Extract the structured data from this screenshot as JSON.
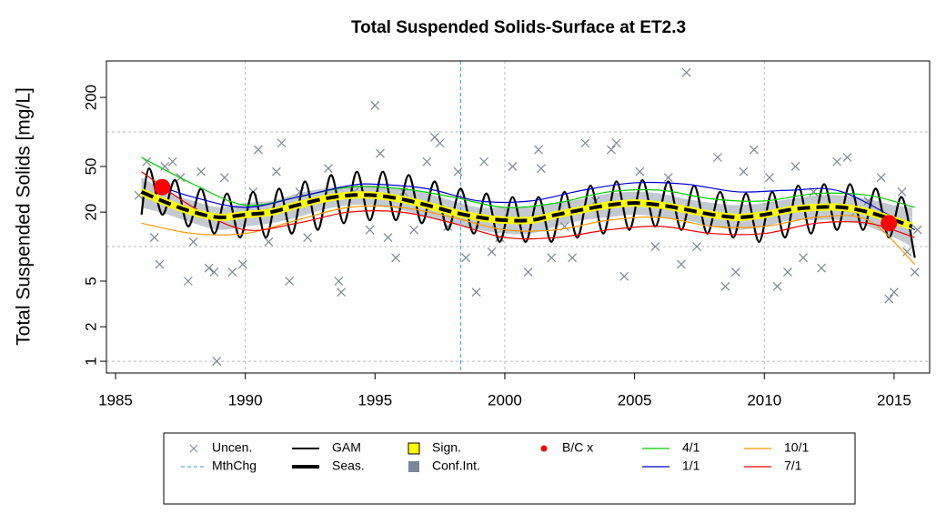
{
  "chart_data": {
    "type": "line",
    "title": "Total Suspended Solids-Surface at ET2.3",
    "y_label": "Total Suspended Solids [mg/L]",
    "log_y": true,
    "xlim": [
      1984.65,
      2016.37
    ],
    "ylim": [
      0.79,
      416
    ],
    "xticks": [
      1985,
      1990,
      1995,
      2000,
      2005,
      2010,
      2015
    ],
    "yticks": [
      1,
      2,
      5,
      20,
      50,
      200
    ],
    "xgrid": [
      1990,
      2000,
      2010
    ],
    "ygrid": [
      1,
      10,
      100
    ],
    "series": [
      {
        "name": "Uncen.",
        "kind": "scatter",
        "color": "#7a8796",
        "x": [
          1985.9,
          1986.2,
          1986.5,
          1986.7,
          1986.9,
          1987.2,
          1987.5,
          1987.8,
          1988.0,
          1988.3,
          1988.6,
          1988.8,
          1988.9,
          1989.2,
          1989.5,
          1989.9,
          1990.3,
          1990.5,
          1990.9,
          1991.2,
          1991.4,
          1991.7,
          1992.1,
          1992.4,
          1993.2,
          1993.6,
          1993.7,
          1994.2,
          1994.8,
          1995.0,
          1995.2,
          1995.5,
          1995.8,
          1996.1,
          1996.5,
          1997.0,
          1997.3,
          1997.5,
          1997.8,
          1998.2,
          1998.5,
          1998.9,
          1999.2,
          1999.5,
          1999.8,
          2000.3,
          2000.9,
          2001.3,
          2001.4,
          2001.8,
          2002.3,
          2002.6,
          2003.1,
          2003.5,
          2004.1,
          2004.3,
          2004.6,
          2005.2,
          2005.8,
          2006.3,
          2006.8,
          2007.0,
          2007.4,
          2008.2,
          2008.5,
          2008.9,
          2009.2,
          2009.6,
          2010.2,
          2010.5,
          2010.9,
          2011.2,
          2011.5,
          2011.9,
          2012.2,
          2012.8,
          2013.2,
          2013.5,
          2014.0,
          2014.5,
          2014.8,
          2015.0,
          2015.3,
          2015.5,
          2015.8,
          2015.9
        ],
        "values": [
          28,
          55,
          12,
          7,
          50,
          55,
          40,
          5,
          11,
          45,
          6.5,
          6,
          1,
          40,
          6,
          7,
          30,
          70,
          11,
          45,
          80,
          5,
          30,
          12,
          48,
          5,
          4,
          30,
          14,
          170,
          65,
          12,
          8,
          30,
          14,
          55,
          90,
          80,
          15,
          45,
          8,
          4,
          55,
          9,
          12,
          50,
          6,
          70,
          48,
          8,
          15,
          8,
          80,
          25,
          70,
          80,
          5.5,
          45,
          10,
          40,
          7,
          330,
          10,
          60,
          4.5,
          6,
          45,
          70,
          40,
          4.5,
          6,
          50,
          8,
          30,
          6.5,
          55,
          60,
          20,
          25,
          40,
          3.5,
          4,
          30,
          9,
          6,
          14
        ]
      },
      {
        "name": "MthChg",
        "kind": "vline",
        "color": "#3399ff",
        "x": [
          1998.3
        ]
      },
      {
        "name": "GAM",
        "kind": "line",
        "color": "#000000",
        "x": [
          1986.0,
          1986.3,
          1986.8,
          1987.3,
          1987.8,
          1988.3,
          1988.8,
          1989.3,
          1989.8,
          1990.3,
          1990.8,
          1991.3,
          1991.8,
          1992.3,
          1992.8,
          1993.3,
          1993.8,
          1994.3,
          1994.8,
          1995.3,
          1995.8,
          1996.3,
          1996.8,
          1997.3,
          1997.8,
          1998.3,
          1998.8,
          1999.3,
          1999.8,
          2000.3,
          2000.8,
          2001.3,
          2001.8,
          2002.3,
          2002.8,
          2003.3,
          2003.8,
          2004.3,
          2004.8,
          2005.3,
          2005.8,
          2006.3,
          2006.8,
          2007.3,
          2007.8,
          2008.3,
          2008.8,
          2009.3,
          2009.8,
          2010.3,
          2010.8,
          2011.3,
          2011.8,
          2012.3,
          2012.8,
          2013.3,
          2013.8,
          2014.3,
          2014.8,
          2015.3,
          2015.8
        ],
        "values": [
          19,
          48,
          19,
          38,
          15,
          32,
          13,
          29,
          12,
          30,
          12,
          32,
          13,
          37,
          14,
          42,
          16,
          45,
          17,
          45,
          17,
          42,
          16,
          37,
          14,
          32,
          13,
          29,
          11,
          27,
          11,
          27,
          11,
          30,
          12,
          34,
          13,
          37,
          14,
          38,
          15,
          37,
          14,
          34,
          13,
          30,
          12,
          29,
          11,
          30,
          12,
          34,
          13,
          35,
          14,
          35,
          14,
          32,
          12,
          27,
          8
        ]
      },
      {
        "name": "Seas.",
        "kind": "trend",
        "color": "#000000",
        "x": [
          1986,
          1987,
          1988,
          1989,
          1990,
          1991,
          1992,
          1993,
          1994,
          1995,
          1996,
          1997,
          1998,
          1999,
          2000,
          2001,
          2002,
          2003,
          2004,
          2005,
          2006,
          2007,
          2008,
          2009,
          2010,
          2011,
          2012,
          2013,
          2014,
          2015,
          2015.7
        ],
        "values": [
          30,
          24,
          20,
          18,
          19,
          20,
          23,
          26,
          28,
          28,
          26,
          23,
          20,
          18,
          17,
          17,
          19,
          21,
          23,
          24,
          23,
          21,
          19,
          18,
          19,
          21,
          22,
          22,
          20,
          17,
          15
        ]
      },
      {
        "name": "Sign.",
        "kind": "sign",
        "color": "#ffff00"
      },
      {
        "name": "Conf.Int.",
        "kind": "band",
        "color": "#7a8796",
        "x": [
          1986,
          1987,
          1988,
          1989,
          1990,
          1991,
          1992,
          1993,
          1994,
          1995,
          1996,
          1997,
          1998,
          1999,
          2000,
          2001,
          2002,
          2003,
          2004,
          2005,
          2006,
          2007,
          2008,
          2009,
          2010,
          2011,
          2012,
          2013,
          2014,
          2015,
          2015.7
        ],
        "lower": [
          22,
          19,
          16,
          14,
          15,
          16,
          18,
          21,
          23,
          23,
          21,
          18,
          16,
          14,
          13,
          13,
          15,
          17,
          18,
          19,
          18,
          17,
          15,
          14,
          15,
          17,
          17,
          17,
          15,
          12,
          10
        ],
        "upper": [
          40,
          30,
          25,
          22,
          24,
          25,
          29,
          32,
          34,
          34,
          32,
          29,
          25,
          22,
          22,
          22,
          24,
          26,
          29,
          30,
          29,
          26,
          24,
          23,
          24,
          26,
          28,
          28,
          26,
          23,
          22
        ]
      },
      {
        "name": "B/C x",
        "kind": "point",
        "color": "#ff0000",
        "x": [
          1986.8,
          2014.8
        ],
        "values": [
          33,
          16
        ]
      },
      {
        "name": "4/1",
        "kind": "line",
        "color": "#00cc00",
        "x": [
          1986,
          1988,
          1990,
          1992,
          1994,
          1996,
          1998,
          2000,
          2002,
          2004,
          2006,
          2008,
          2010,
          2012,
          2014,
          2015.8
        ],
        "values": [
          60,
          35,
          23,
          27,
          33,
          32,
          27,
          22,
          24,
          30,
          31,
          26,
          25,
          29,
          28,
          22
        ]
      },
      {
        "name": "1/1",
        "kind": "line",
        "color": "#0000cc",
        "x": [
          1986.5,
          1988,
          1990,
          1992,
          1994,
          1995,
          1997,
          1999,
          2001,
          2003,
          2005,
          2007,
          2009,
          2011,
          2013,
          2015.8
        ],
        "values": [
          35,
          27,
          22,
          27,
          34,
          35,
          32,
          25,
          25,
          31,
          36,
          35,
          30,
          31,
          30,
          14
        ]
      },
      {
        "name": "10/1",
        "kind": "line",
        "color": "#ff9900",
        "x": [
          1986,
          1988,
          1990,
          1992,
          1994,
          1996,
          1998,
          2000,
          2002,
          2004,
          2006,
          2008,
          2010,
          2012,
          2014,
          2015.8
        ],
        "values": [
          16,
          13,
          13,
          17,
          22,
          22,
          18,
          14,
          14,
          17,
          18,
          15,
          15,
          18,
          17,
          7
        ]
      },
      {
        "name": "7/1",
        "kind": "line",
        "color": "#ee0000",
        "x": [
          1986,
          1988,
          1990,
          1992,
          1994,
          1996,
          1998,
          2000,
          2002,
          2004,
          2006,
          2008,
          2010,
          2012,
          2014,
          2015.8
        ],
        "values": [
          45,
          22,
          14,
          16,
          20,
          20,
          16,
          12,
          12,
          14,
          15,
          13,
          13,
          16,
          16,
          12
        ]
      }
    ]
  }
}
